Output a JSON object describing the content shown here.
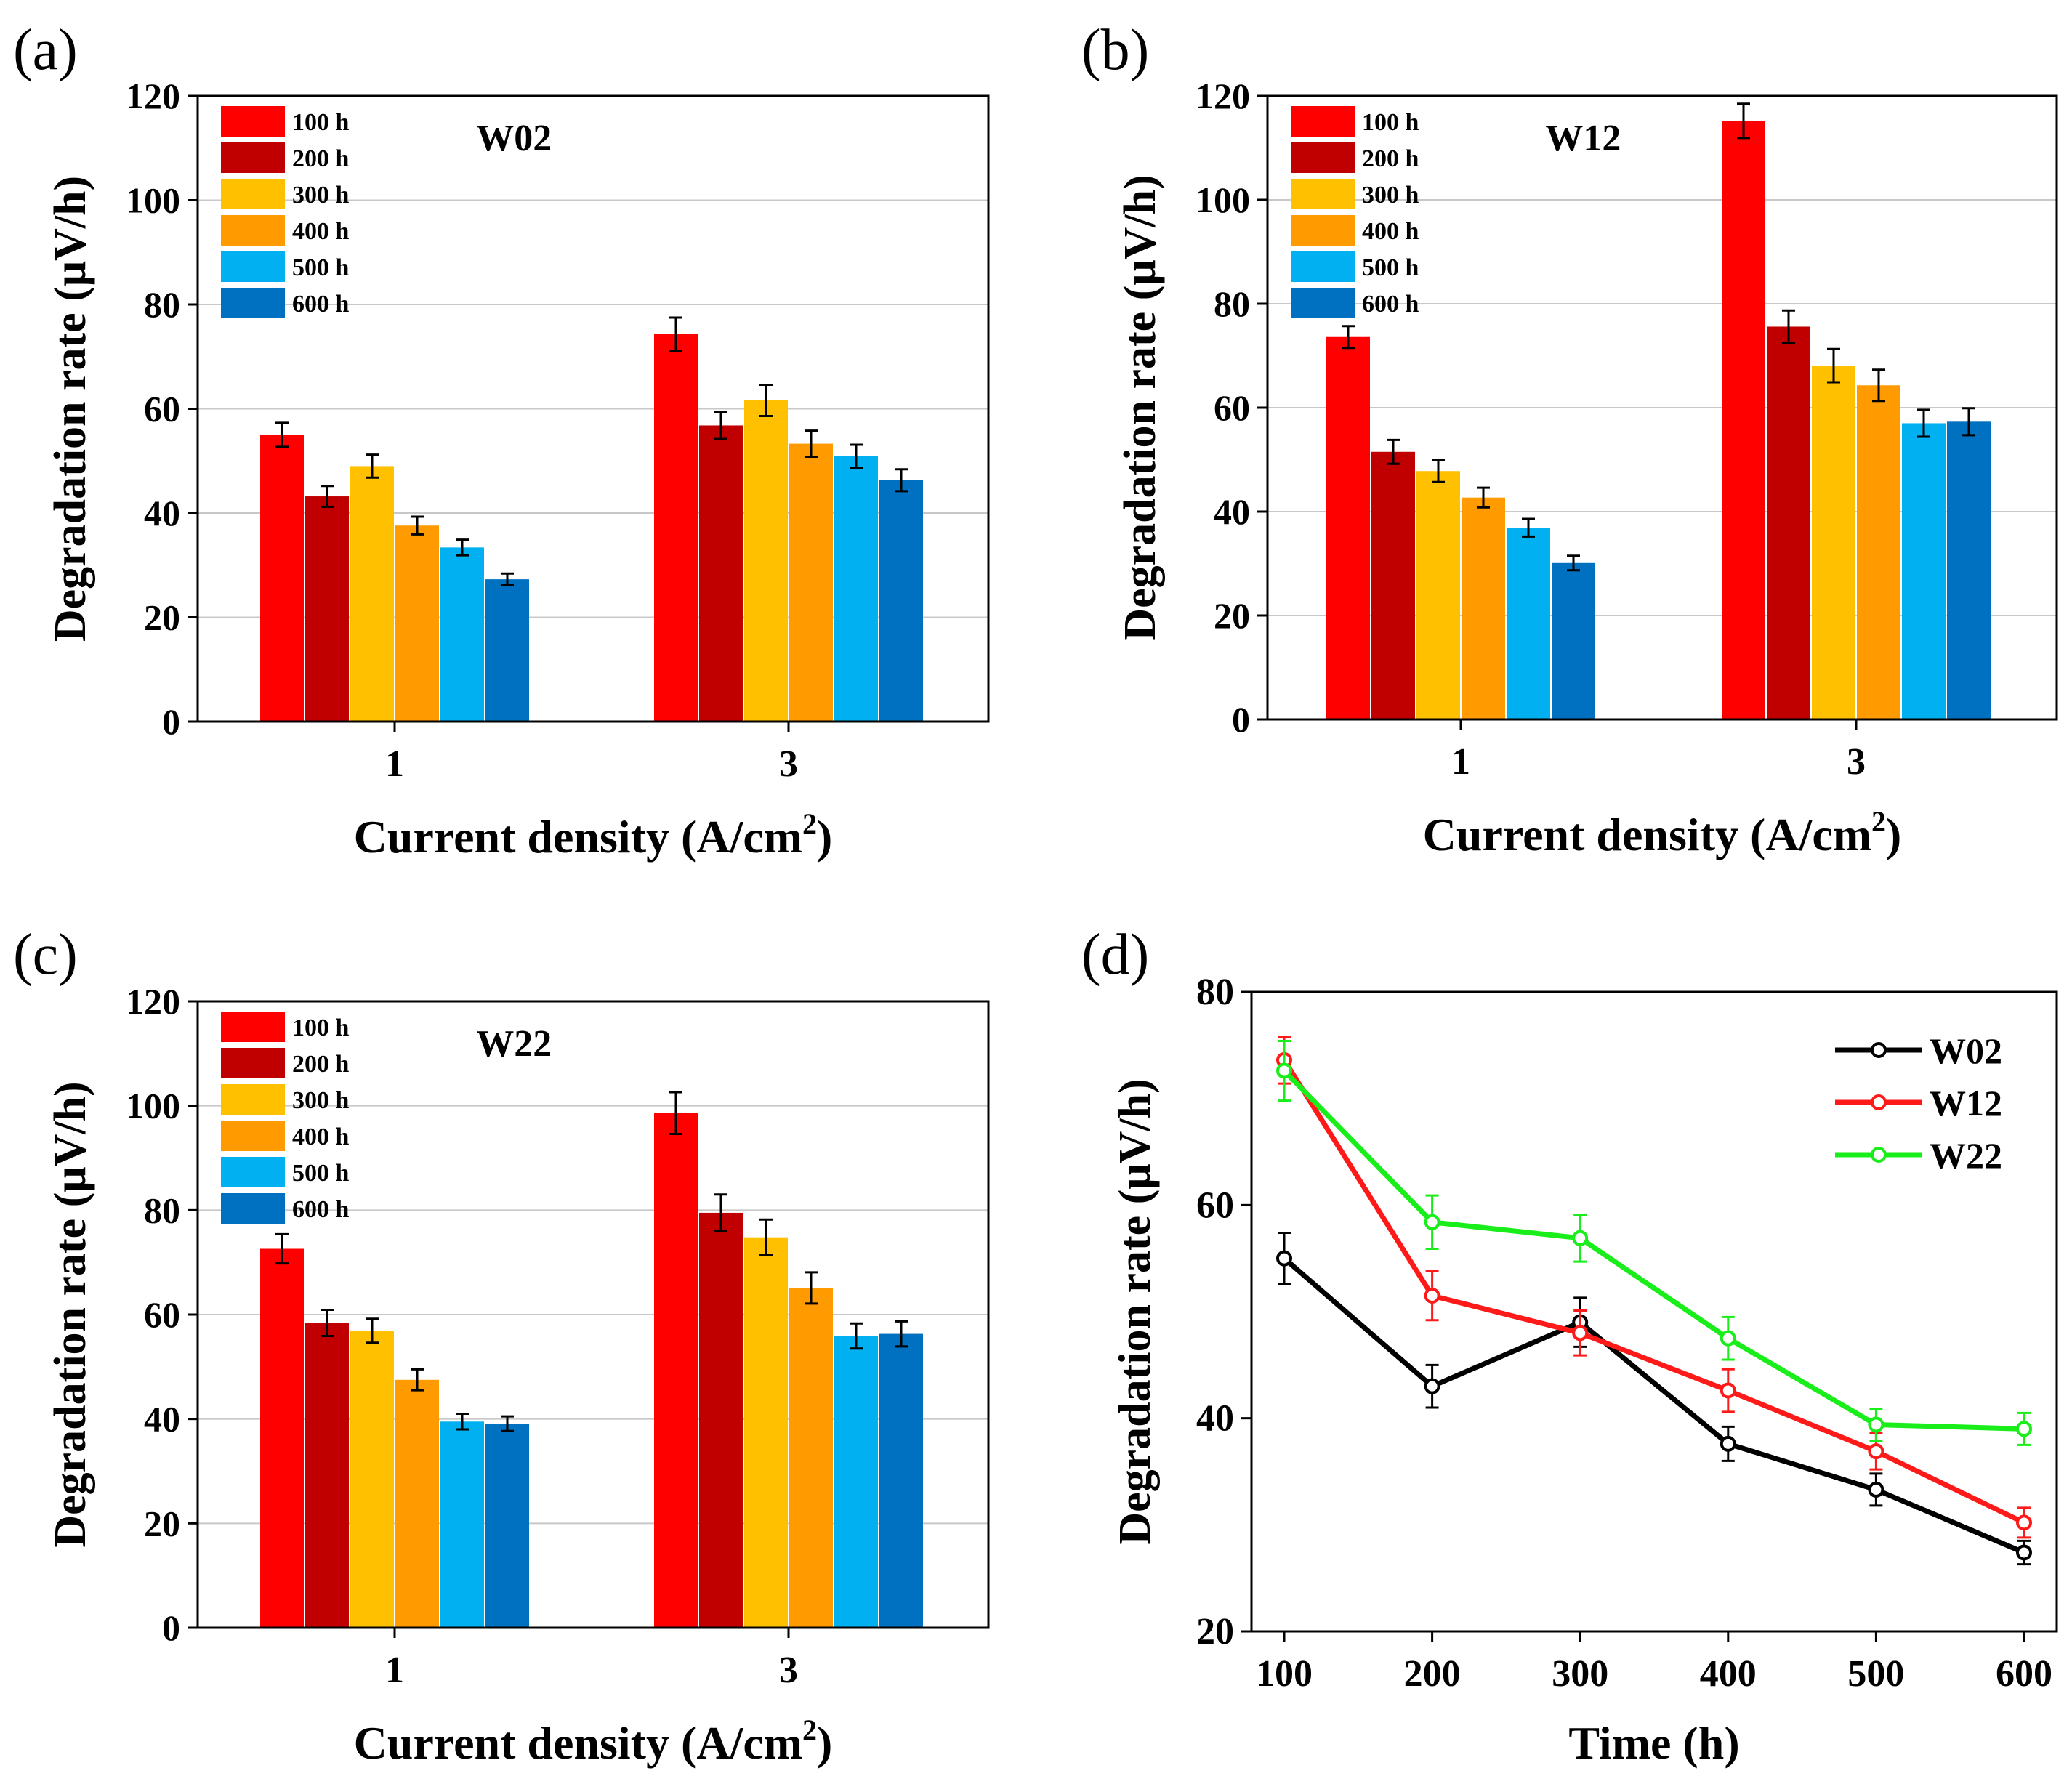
{
  "colors": {
    "bar_series": [
      "#ff0000",
      "#c00000",
      "#ffc000",
      "#ff9a00",
      "#00b0f0",
      "#0070c0"
    ],
    "line_series": [
      "#000000",
      "#ff1a1a",
      "#1aee1a"
    ],
    "grid": "#c8c8c8",
    "axis": "#000000"
  },
  "chart_data": [
    {
      "panel_label": "(a)",
      "type": "bar",
      "title": "W02",
      "xlabel": "Current density (A/cm",
      "xlabel_sup": "2",
      "xlabel_close": ")",
      "ylabel": "Degradation rate (μV/h)",
      "ylim": [
        0,
        120
      ],
      "yticks": [
        "0",
        "20",
        "40",
        "60",
        "80",
        "100",
        "120"
      ],
      "categories": [
        "1",
        "3"
      ],
      "grid": true,
      "legend_position": "top-left",
      "series": [
        {
          "name": "100 h",
          "values": [
            55,
            74.3
          ],
          "errors": [
            2.3,
            3.2
          ]
        },
        {
          "name": "200 h",
          "values": [
            43.2,
            56.8
          ],
          "errors": [
            2,
            2.6
          ]
        },
        {
          "name": "300 h",
          "values": [
            49,
            61.6
          ],
          "errors": [
            2.2,
            3
          ]
        },
        {
          "name": "400 h",
          "values": [
            37.6,
            53.3
          ],
          "errors": [
            1.7,
            2.5
          ]
        },
        {
          "name": "500 h",
          "values": [
            33.4,
            50.9
          ],
          "errors": [
            1.5,
            2.2
          ]
        },
        {
          "name": "600 h",
          "values": [
            27.3,
            46.3
          ],
          "errors": [
            1.1,
            2.1
          ]
        }
      ]
    },
    {
      "panel_label": "(b)",
      "type": "bar",
      "title": "W12",
      "xlabel": "Current density (A/cm",
      "xlabel_sup": "2",
      "xlabel_close": ")",
      "ylabel": "Degradation rate (μV/h)",
      "ylim": [
        0,
        120
      ],
      "yticks": [
        "0",
        "20",
        "40",
        "60",
        "80",
        "100",
        "120"
      ],
      "categories": [
        "1",
        "3"
      ],
      "grid": true,
      "legend_position": "top-left",
      "series": [
        {
          "name": "100 h",
          "values": [
            73.6,
            115.2
          ],
          "errors": [
            2.1,
            3.3
          ]
        },
        {
          "name": "200 h",
          "values": [
            51.5,
            75.6
          ],
          "errors": [
            2.3,
            3.1
          ]
        },
        {
          "name": "300 h",
          "values": [
            47.8,
            68.1
          ],
          "errors": [
            2.1,
            3.2
          ]
        },
        {
          "name": "400 h",
          "values": [
            42.7,
            64.3
          ],
          "errors": [
            1.9,
            3
          ]
        },
        {
          "name": "500 h",
          "values": [
            36.9,
            57
          ],
          "errors": [
            1.7,
            2.6
          ]
        },
        {
          "name": "600 h",
          "values": [
            30.1,
            57.3
          ],
          "errors": [
            1.4,
            2.6
          ]
        }
      ]
    },
    {
      "panel_label": "(c)",
      "type": "bar",
      "title": "W22",
      "xlabel": "Current density (A/cm",
      "xlabel_sup": "2",
      "xlabel_close": ")",
      "ylabel": "Degradation rate (μV/h)",
      "ylim": [
        0,
        120
      ],
      "yticks": [
        "0",
        "20",
        "40",
        "60",
        "80",
        "100",
        "120"
      ],
      "categories": [
        "1",
        "3"
      ],
      "grid": true,
      "legend_position": "top-left",
      "series": [
        {
          "name": "100 h",
          "values": [
            72.6,
            98.6
          ],
          "errors": [
            2.8,
            4
          ]
        },
        {
          "name": "200 h",
          "values": [
            58.4,
            79.5
          ],
          "errors": [
            2.5,
            3.5
          ]
        },
        {
          "name": "300 h",
          "values": [
            56.9,
            74.8
          ],
          "errors": [
            2.3,
            3.4
          ]
        },
        {
          "name": "400 h",
          "values": [
            47.5,
            65.1
          ],
          "errors": [
            2,
            3
          ]
        },
        {
          "name": "500 h",
          "values": [
            39.5,
            55.9
          ],
          "errors": [
            1.5,
            2.4
          ]
        },
        {
          "name": "600 h",
          "values": [
            39.1,
            56.3
          ],
          "errors": [
            1.4,
            2.4
          ]
        }
      ]
    },
    {
      "panel_label": "(d)",
      "type": "line",
      "title": "",
      "xlabel": "Time (h)",
      "ylabel": "Degradation rate (μV/h)",
      "xlim": [
        100,
        600
      ],
      "ylim": [
        20,
        80
      ],
      "x": [
        100,
        200,
        300,
        400,
        500,
        600
      ],
      "xticks": [
        "100",
        "200",
        "300",
        "400",
        "500",
        "600"
      ],
      "yticks": [
        "20",
        "40",
        "60",
        "80"
      ],
      "grid": false,
      "legend_position": "top-right",
      "series": [
        {
          "name": "W02",
          "values": [
            55,
            43,
            49,
            37.6,
            33.3,
            27.4
          ],
          "errors": [
            2.4,
            2,
            2.3,
            1.6,
            1.5,
            1.1
          ]
        },
        {
          "name": "W12",
          "values": [
            73.6,
            51.5,
            48,
            42.6,
            36.9,
            30.2
          ],
          "errors": [
            2.2,
            2.3,
            2.1,
            2,
            1.7,
            1.4
          ]
        },
        {
          "name": "W22",
          "values": [
            72.6,
            58.4,
            56.9,
            47.5,
            39.4,
            39
          ],
          "errors": [
            2.8,
            2.5,
            2.2,
            2,
            1.5,
            1.5
          ]
        }
      ]
    }
  ]
}
